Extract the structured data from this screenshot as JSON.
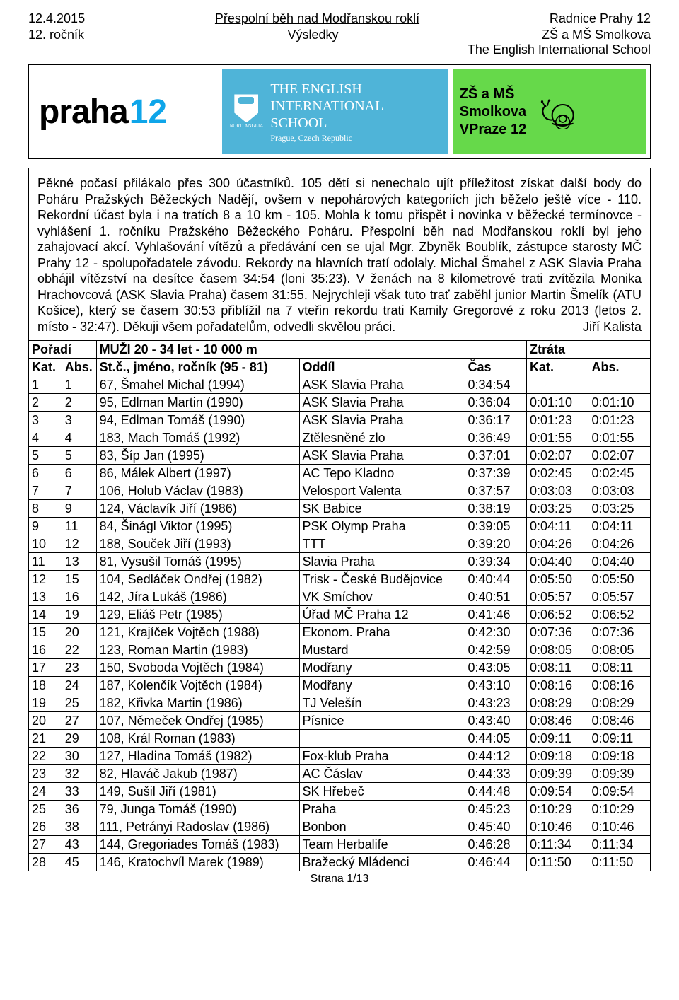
{
  "header": {
    "date": "12.4.2015",
    "title": "Přespolní běh nad Modřanskou roklí",
    "venue": "Radnice Prahy 12",
    "edition": "12. ročník",
    "subtitle": "Výsledky",
    "school1": "ZŠ a MŠ Smolkova",
    "school2": "The English International School"
  },
  "banner": {
    "praha_text": "praha",
    "praha_num": "12",
    "eis_line1": "THE ENGLISH",
    "eis_line2": "INTERNATIONAL",
    "eis_line3": "SCHOOL",
    "eis_sub": "Prague, Czech Republic",
    "eis_nord": "NORD ANGLIA",
    "smolkova_line1": "ZŠ a MŠ",
    "smolkova_line2": "Smolkova",
    "smolkova_line3": "VPraze 12"
  },
  "description": {
    "text": "Pěkné počasí přilákalo přes 300 účastníků. 105 dětí si nenechalo ujít příležitost získat další body do Poháru Pražských Běžeckých Nadějí, ovšem v nepohárových kategoriích jich běželo ještě více - 110. Rekordní účast byla i na tratích 8 a 10 km - 105. Mohla k tomu přispět i novinka v běžecké termínovce - vyhlášení 1. ročníku Pražského Běžeckého Poháru. Přespolní běh nad Modřanskou roklí byl jeho zahajovací akcí. Vyhlašování vítězů a předávání cen se ujal Mgr. Zbyněk Boublík, zástupce starosty MČ Prahy 12 - spolupořadatele závodu. Rekordy na hlavních tratí odolaly. Michal Šmahel z ASK Slavia Praha obhájil vítězství na desítce časem 34:54 (loni 35:23). V ženách na 8 kilometrové trati zvítězila Monika Hrachovcová (ASK Slavia Praha) časem 31:55. Nejrychleji však tuto trať zaběhl junior Martin Šmelík (ATU Košice), který se časem 30:53 přiblížil na 7 vteřin rekordu trati Kamily Gregorové z roku 2013 (letos 2. místo - 32:47). Děkuji všem pořadatelům, odvedli skvělou práci.",
    "signature": "Jiří Kalista"
  },
  "table": {
    "category_title": "MUŽI 20 - 34 let - 10 000 m",
    "poradi_label": "Pořadí",
    "ztrata_label": "Ztráta",
    "col_kat": "Kat.",
    "col_abs": "Abs.",
    "col_name": "St.č., jméno, ročník (95 - 81)",
    "col_oddil": "Oddíl",
    "col_cas": "Čas",
    "col_kat2": "Kat.",
    "col_abs2": "Abs.",
    "rows": [
      {
        "kat": "1",
        "abs": "1",
        "name": "67, Šmahel Michal (1994)",
        "oddil": "ASK Slavia Praha",
        "cas": "0:34:54",
        "zkat": "",
        "zabs": ""
      },
      {
        "kat": "2",
        "abs": "2",
        "name": "95, Edlman Martin (1990)",
        "oddil": "ASK Slavia Praha",
        "cas": "0:36:04",
        "zkat": "0:01:10",
        "zabs": "0:01:10"
      },
      {
        "kat": "3",
        "abs": "3",
        "name": "94, Edlman Tomáš (1990)",
        "oddil": "ASK Slavia Praha",
        "cas": "0:36:17",
        "zkat": "0:01:23",
        "zabs": "0:01:23"
      },
      {
        "kat": "4",
        "abs": "4",
        "name": "183, Mach Tomáš (1992)",
        "oddil": "Ztělesněné zlo",
        "cas": "0:36:49",
        "zkat": "0:01:55",
        "zabs": "0:01:55"
      },
      {
        "kat": "5",
        "abs": "5",
        "name": "83, Šíp Jan (1995)",
        "oddil": "ASK Slavia Praha",
        "cas": "0:37:01",
        "zkat": "0:02:07",
        "zabs": "0:02:07"
      },
      {
        "kat": "6",
        "abs": "6",
        "name": "86, Málek Albert (1997)",
        "oddil": "AC Tepo Kladno",
        "cas": "0:37:39",
        "zkat": "0:02:45",
        "zabs": "0:02:45"
      },
      {
        "kat": "7",
        "abs": "7",
        "name": "106, Holub Václav (1983)",
        "oddil": "Velosport Valenta",
        "cas": "0:37:57",
        "zkat": "0:03:03",
        "zabs": "0:03:03"
      },
      {
        "kat": "8",
        "abs": "9",
        "name": "124, Václavík Jiří (1986)",
        "oddil": "SK Babice",
        "cas": "0:38:19",
        "zkat": "0:03:25",
        "zabs": "0:03:25"
      },
      {
        "kat": "9",
        "abs": "11",
        "name": "84, Šinágl Viktor (1995)",
        "oddil": "PSK Olymp Praha",
        "cas": "0:39:05",
        "zkat": "0:04:11",
        "zabs": "0:04:11"
      },
      {
        "kat": "10",
        "abs": "12",
        "name": "188, Souček Jiří (1993)",
        "oddil": "TTT",
        "cas": "0:39:20",
        "zkat": "0:04:26",
        "zabs": "0:04:26"
      },
      {
        "kat": "11",
        "abs": "13",
        "name": "81, Vysušil Tomáš (1995)",
        "oddil": "Slavia Praha",
        "cas": "0:39:34",
        "zkat": "0:04:40",
        "zabs": "0:04:40"
      },
      {
        "kat": "12",
        "abs": "15",
        "name": "104, Sedláček Ondřej (1982)",
        "oddil": "Trisk - České Budějovice",
        "cas": "0:40:44",
        "zkat": "0:05:50",
        "zabs": "0:05:50"
      },
      {
        "kat": "13",
        "abs": "16",
        "name": "142, Jíra Lukáš (1986)",
        "oddil": "VK Smíchov",
        "cas": "0:40:51",
        "zkat": "0:05:57",
        "zabs": "0:05:57"
      },
      {
        "kat": "14",
        "abs": "19",
        "name": "129, Eliáš Petr (1985)",
        "oddil": "Úřad MČ Praha 12",
        "cas": "0:41:46",
        "zkat": "0:06:52",
        "zabs": "0:06:52"
      },
      {
        "kat": "15",
        "abs": "20",
        "name": "121, Krajíček Vojtěch (1988)",
        "oddil": "Ekonom. Praha",
        "cas": "0:42:30",
        "zkat": "0:07:36",
        "zabs": "0:07:36"
      },
      {
        "kat": "16",
        "abs": "22",
        "name": "123, Roman Martin (1983)",
        "oddil": "Mustard",
        "cas": "0:42:59",
        "zkat": "0:08:05",
        "zabs": "0:08:05"
      },
      {
        "kat": "17",
        "abs": "23",
        "name": "150, Svoboda Vojtěch (1984)",
        "oddil": "Modřany",
        "cas": "0:43:05",
        "zkat": "0:08:11",
        "zabs": "0:08:11"
      },
      {
        "kat": "18",
        "abs": "24",
        "name": "187, Kolenčík Vojtěch (1984)",
        "oddil": "Modřany",
        "cas": "0:43:10",
        "zkat": "0:08:16",
        "zabs": "0:08:16"
      },
      {
        "kat": "19",
        "abs": "25",
        "name": "182, Křivka Martin (1986)",
        "oddil": "TJ Velešín",
        "cas": "0:43:23",
        "zkat": "0:08:29",
        "zabs": "0:08:29"
      },
      {
        "kat": "20",
        "abs": "27",
        "name": "107, Němeček Ondřej (1985)",
        "oddil": "Písnice",
        "cas": "0:43:40",
        "zkat": "0:08:46",
        "zabs": "0:08:46"
      },
      {
        "kat": "21",
        "abs": "29",
        "name": "108, Král Roman (1983)",
        "oddil": "",
        "cas": "0:44:05",
        "zkat": "0:09:11",
        "zabs": "0:09:11"
      },
      {
        "kat": "22",
        "abs": "30",
        "name": "127, Hladina Tomáš (1982)",
        "oddil": "Fox-klub Praha",
        "cas": "0:44:12",
        "zkat": "0:09:18",
        "zabs": "0:09:18"
      },
      {
        "kat": "23",
        "abs": "32",
        "name": "82, Hlaváč Jakub (1987)",
        "oddil": "AC Čáslav",
        "cas": "0:44:33",
        "zkat": "0:09:39",
        "zabs": "0:09:39"
      },
      {
        "kat": "24",
        "abs": "33",
        "name": "149, Sušil Jiří (1981)",
        "oddil": "SK Hřebeč",
        "cas": "0:44:48",
        "zkat": "0:09:54",
        "zabs": "0:09:54"
      },
      {
        "kat": "25",
        "abs": "36",
        "name": "79, Junga Tomáš (1990)",
        "oddil": "Praha",
        "cas": "0:45:23",
        "zkat": "0:10:29",
        "zabs": "0:10:29"
      },
      {
        "kat": "26",
        "abs": "38",
        "name": "111, Petrányi Radoslav (1986)",
        "oddil": "Bonbon",
        "cas": "0:45:40",
        "zkat": "0:10:46",
        "zabs": "0:10:46"
      },
      {
        "kat": "27",
        "abs": "43",
        "name": "144, Gregoriades Tomáš (1983)",
        "oddil": "Team Herbalife",
        "cas": "0:46:28",
        "zkat": "0:11:34",
        "zabs": "0:11:34"
      },
      {
        "kat": "28",
        "abs": "45",
        "name": "146, Kratochvíl Marek (1989)",
        "oddil": "Bražecký Mládenci",
        "cas": "0:46:44",
        "zkat": "0:11:50",
        "zabs": "0:11:50"
      }
    ]
  },
  "footer": {
    "page": "Strana 1/13"
  }
}
